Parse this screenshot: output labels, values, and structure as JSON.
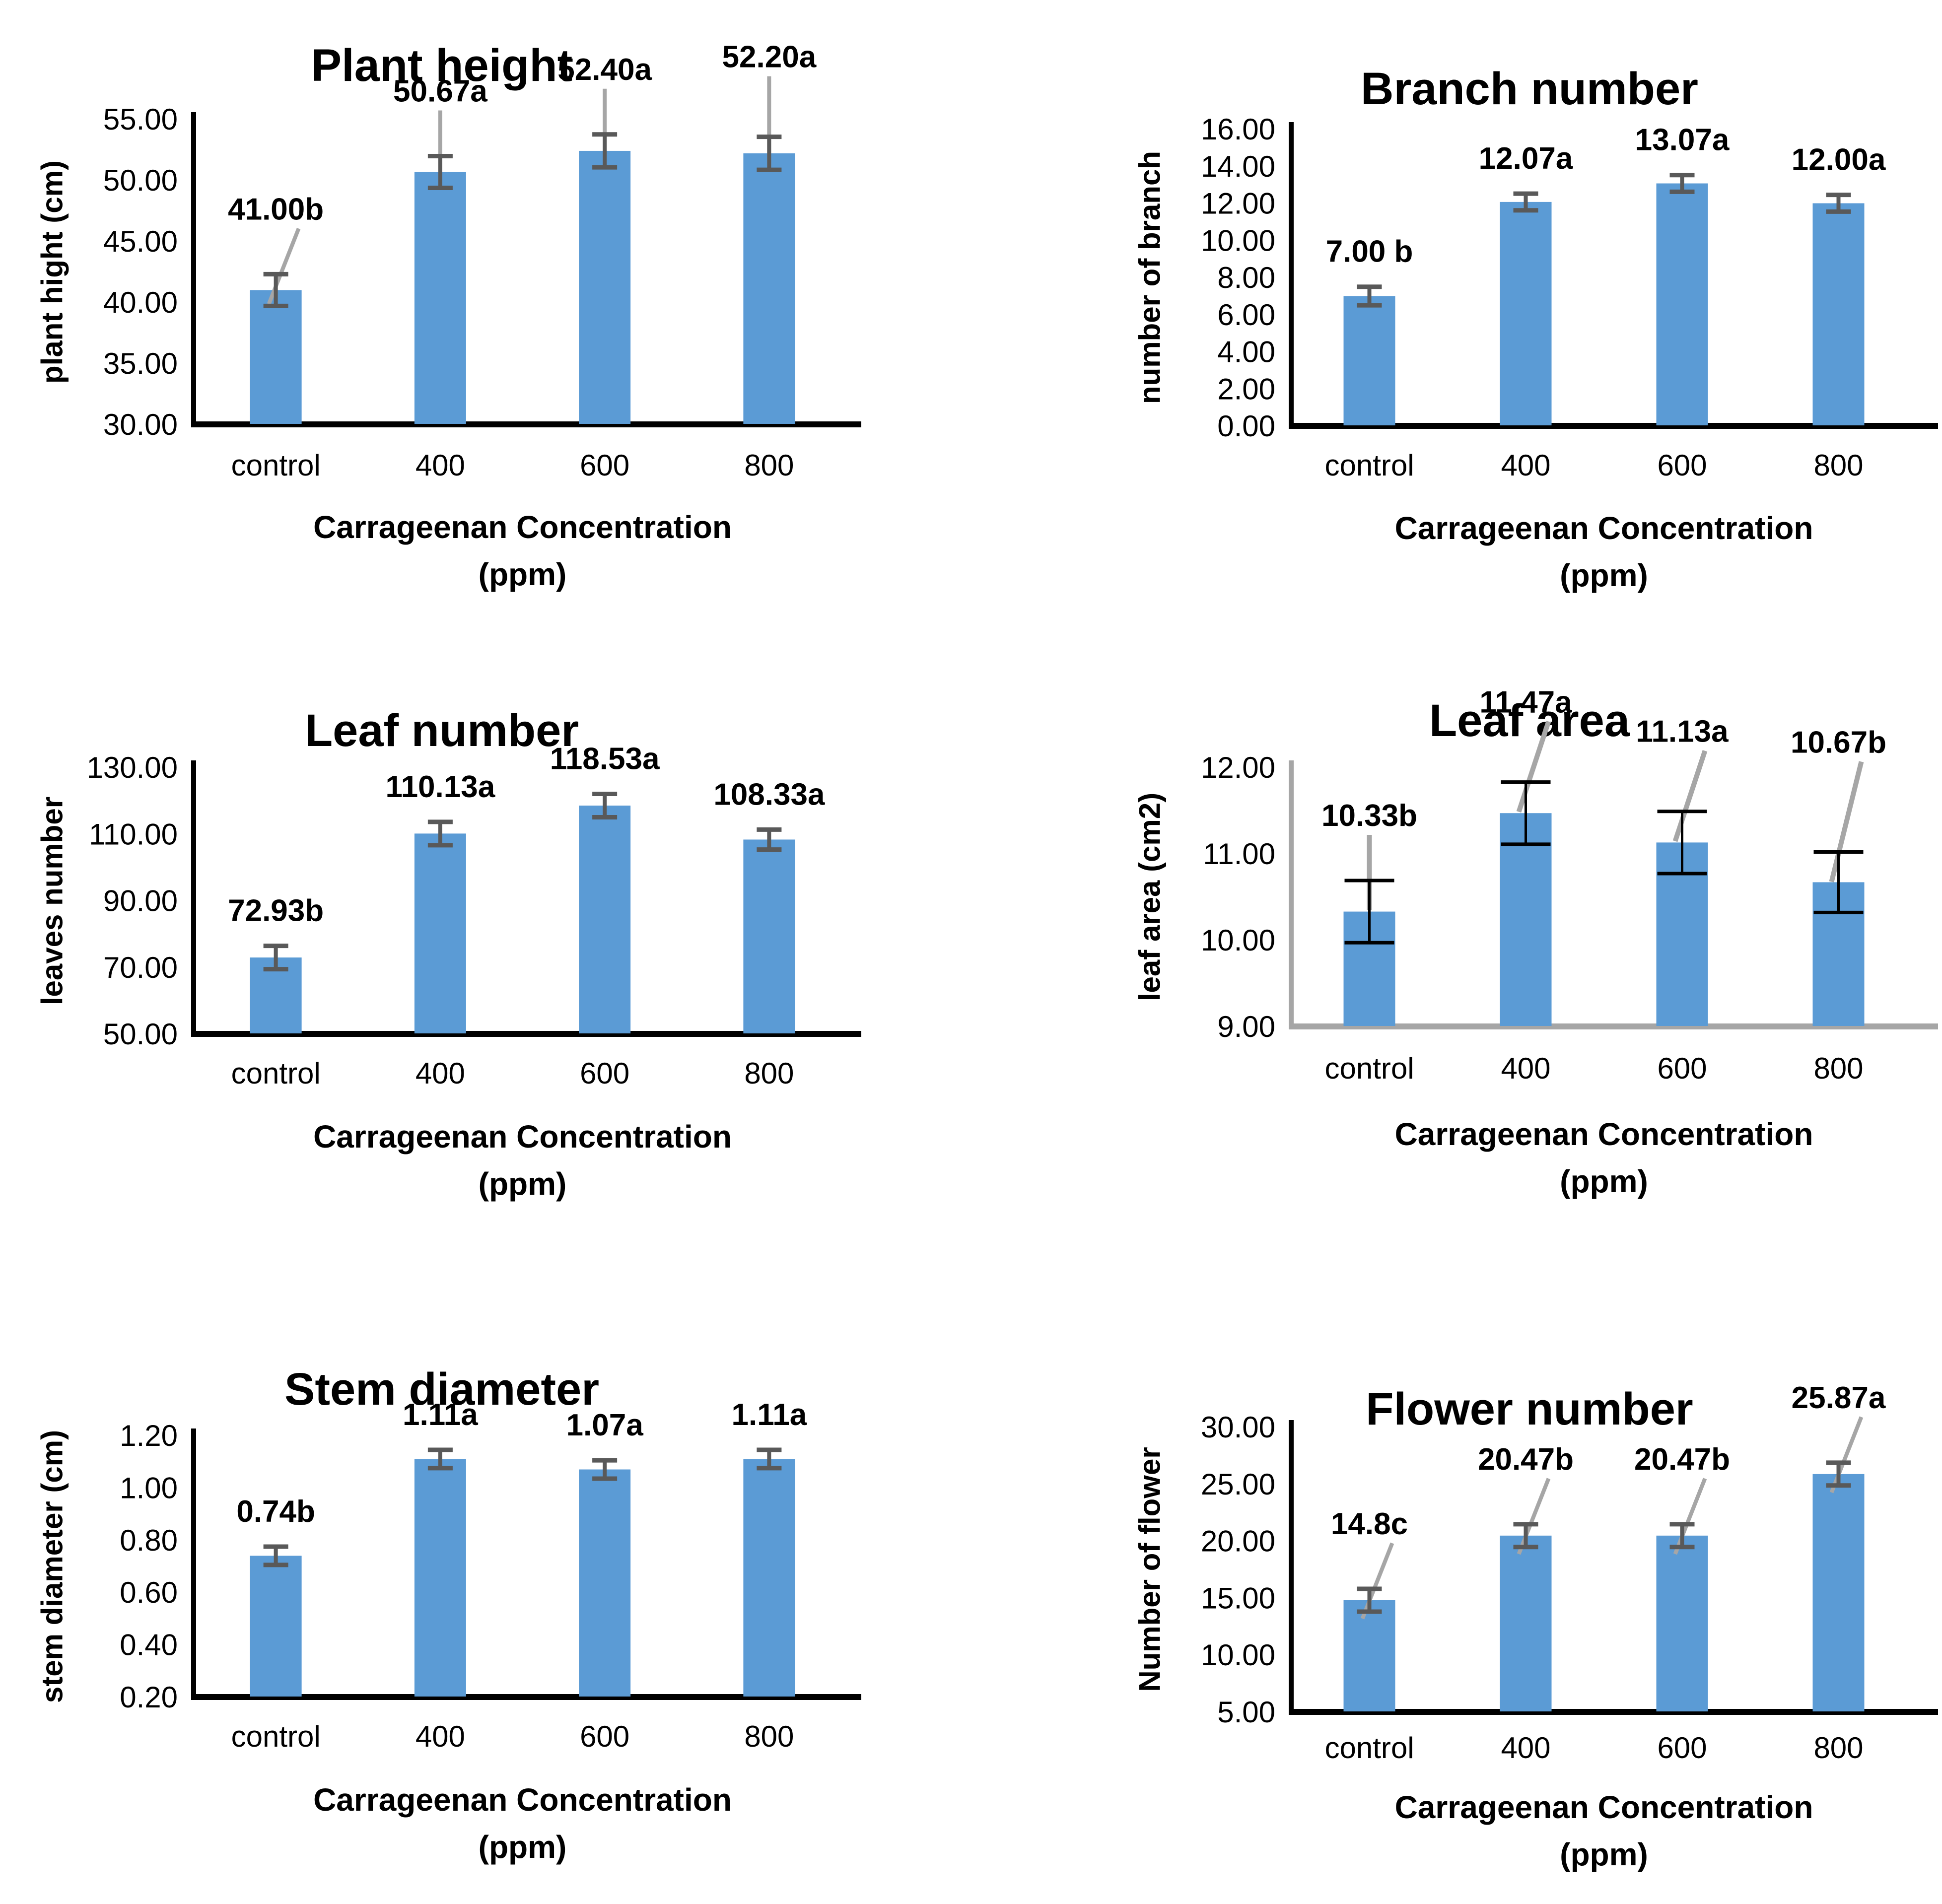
{
  "colors": {
    "bar": "#5B9BD5",
    "error": "#595959",
    "leader": "#A6A6A6",
    "axis": "#000000",
    "axis_gray": "#A6A6A6",
    "text": "#000000"
  },
  "chart_data": [
    {
      "type": "bar",
      "title": "Plant height",
      "ylabel": "plant hight (cm)",
      "xlabel_line1": "Carrageenan Concentration",
      "xlabel_line2": "(ppm)",
      "categories": [
        "control",
        "400",
        "600",
        "800"
      ],
      "values": [
        41.0,
        50.67,
        52.4,
        52.2
      ],
      "value_labels": [
        "41.00b",
        "50.67a",
        "52.40a",
        "52.20a"
      ],
      "errors": [
        1.3,
        1.3,
        1.35,
        1.35
      ],
      "ylim": [
        30,
        55
      ],
      "ytick_labels": [
        "30.00",
        "35.00",
        "40.00",
        "45.00",
        "50.00",
        "55.00"
      ],
      "grid": false,
      "legend": false
    },
    {
      "type": "bar",
      "title": "Branch number",
      "ylabel": "number of branch",
      "xlabel_line1": "Carrageenan Concentration",
      "xlabel_line2": "(ppm)",
      "categories": [
        "control",
        "400",
        "600",
        "800"
      ],
      "values": [
        7.0,
        12.07,
        13.07,
        12.0
      ],
      "value_labels": [
        "7.00 b",
        "12.07a",
        "13.07a",
        "12.00a"
      ],
      "errors": [
        0.5,
        0.45,
        0.45,
        0.45
      ],
      "ylim": [
        0,
        16
      ],
      "ytick_labels": [
        "0.00",
        "2.00",
        "4.00",
        "6.00",
        "8.00",
        "10.00",
        "12.00",
        "14.00",
        "16.00"
      ],
      "grid": false,
      "legend": false
    },
    {
      "type": "bar",
      "title": "Leaf number",
      "ylabel": "leaves number",
      "xlabel_line1": "Carrageenan Concentration",
      "xlabel_line2": "(ppm)",
      "categories": [
        "control",
        "400",
        "600",
        "800"
      ],
      "values": [
        72.93,
        110.13,
        118.53,
        108.33
      ],
      "value_labels": [
        "72.93b",
        "110.13a",
        "118.53a",
        "108.33a"
      ],
      "errors": [
        3.5,
        3.5,
        3.5,
        3.0
      ],
      "ylim": [
        50,
        130
      ],
      "ytick_labels": [
        "50.00",
        "70.00",
        "90.00",
        "110.00",
        "130.00"
      ],
      "grid": false,
      "legend": false
    },
    {
      "type": "bar",
      "title": "Leaf area",
      "ylabel": "leaf area (cm2)",
      "xlabel_line1": "Carrageenan Concentration",
      "xlabel_line2": "(ppm)",
      "categories": [
        "control",
        "400",
        "600",
        "800"
      ],
      "values": [
        10.33,
        11.47,
        11.13,
        10.67
      ],
      "value_labels": [
        "10.33b",
        "11.47a",
        "11.13a",
        "10.67b"
      ],
      "errors": [
        0.36,
        0.36,
        0.36,
        0.35
      ],
      "ylim": [
        9,
        12
      ],
      "ytick_labels": [
        "9.00",
        "10.00",
        "11.00",
        "12.00"
      ],
      "axis_color": "#A6A6A6",
      "error_color": "#000000",
      "grid": false,
      "legend": false
    },
    {
      "type": "bar",
      "title": "Stem diameter",
      "ylabel": "stem diameter (cm)",
      "xlabel_line1": "Carrageenan Concentration",
      "xlabel_line2": "(ppm)",
      "categories": [
        "control",
        "400",
        "600",
        "800"
      ],
      "values": [
        0.74,
        1.11,
        1.07,
        1.11
      ],
      "value_labels": [
        "0.74b",
        "1.11a",
        "1.07a",
        "1.11a"
      ],
      "errors": [
        0.035,
        0.035,
        0.035,
        0.035
      ],
      "ylim": [
        0.2,
        1.2
      ],
      "ytick_labels": [
        "0.20",
        "0.40",
        "0.60",
        "0.80",
        "1.00",
        "1.20"
      ],
      "grid": false,
      "legend": false
    },
    {
      "type": "bar",
      "title": "Flower number",
      "ylabel": "Number of flower",
      "xlabel_line1": "Carrageenan Concentration",
      "xlabel_line2": "(ppm)",
      "categories": [
        "control",
        "400",
        "600",
        "800"
      ],
      "values": [
        14.8,
        20.47,
        20.47,
        25.87
      ],
      "value_labels": [
        "14.8c",
        "20.47b",
        "20.47b",
        "25.87a"
      ],
      "errors": [
        1.0,
        1.0,
        1.0,
        1.0
      ],
      "ylim": [
        5,
        30
      ],
      "ytick_labels": [
        "5.00",
        "10.00",
        "15.00",
        "20.00",
        "25.00",
        "30.00"
      ],
      "grid": false,
      "legend": false
    }
  ]
}
